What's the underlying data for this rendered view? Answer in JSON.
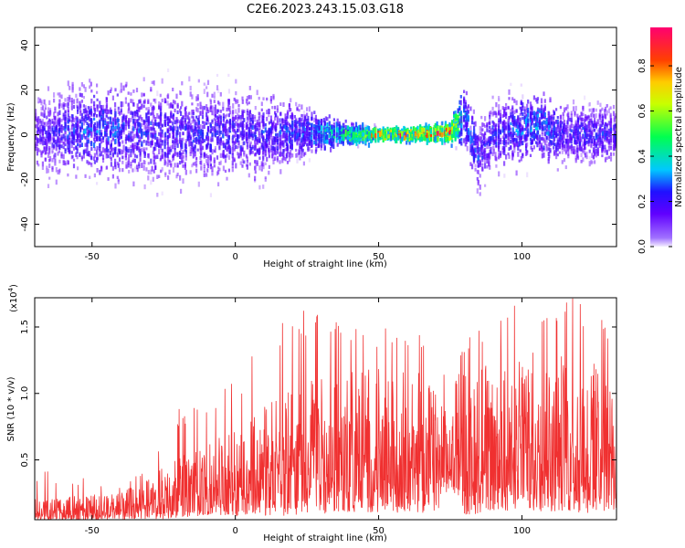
{
  "title": "C2E6.2023.243.15.03.G18",
  "chart_data": [
    {
      "type": "heatmap",
      "xlabel": "Height of straight line (km)",
      "ylabel": "Frequency (Hz)",
      "xlim": [
        -70,
        133
      ],
      "ylim": [
        -50,
        48
      ],
      "xticks": [
        -50,
        0,
        50,
        100
      ],
      "yticks": [
        -40,
        -20,
        0,
        20,
        40
      ],
      "colorbar": {
        "label": "Normalized spectral amplitude",
        "range": [
          0.0,
          0.97
        ],
        "ticks": [
          0.0,
          0.2,
          0.4,
          0.6,
          0.8
        ],
        "tick_labels": [
          "0.0",
          "0.2",
          "0.4",
          "0.6",
          "0.8"
        ],
        "colormap": "rainbow (transparent → violet → blue → cyan → green → yellow → orange → red → magenta)"
      },
      "band_profile": {
        "x_km": [
          -70,
          -50,
          -30,
          -10,
          10,
          25,
          40,
          50,
          60,
          75,
          80,
          85,
          90,
          105,
          115,
          133
        ],
        "center_freq_hz": [
          0,
          2,
          1,
          0,
          0,
          1,
          0,
          0,
          0,
          1,
          8,
          -10,
          0,
          4,
          0,
          0
        ],
        "half_width_hz": [
          12,
          14,
          15,
          14,
          13,
          7,
          3,
          2,
          2,
          3,
          9,
          12,
          10,
          10,
          9,
          9
        ],
        "peak_amplitude": [
          0.25,
          0.35,
          0.3,
          0.3,
          0.3,
          0.35,
          0.6,
          0.85,
          0.9,
          0.9,
          0.4,
          0.3,
          0.3,
          0.4,
          0.3,
          0.3
        ]
      }
    },
    {
      "type": "line",
      "xlabel": "Height of straight line (km)",
      "ylabel": "SNR (10 * v/v)",
      "y_multiplier_label": "(x10",
      "y_multiplier_exp": "4",
      "y_multiplier_close": ")",
      "xlim": [
        -70,
        133
      ],
      "ylim": [
        0.05,
        1.72
      ],
      "xticks": [
        -50,
        0,
        50,
        100
      ],
      "yticks": [
        0.5,
        1.0,
        1.5
      ],
      "ytick_labels": [
        "0.5",
        "1.0",
        "1.5"
      ],
      "series_color": "#f03030",
      "envelope": {
        "x_km": [
          -70,
          -40,
          -30,
          -20,
          -10,
          0,
          20,
          40,
          60,
          70,
          75,
          80,
          100,
          120,
          133
        ],
        "floor": [
          0.05,
          0.05,
          0.05,
          0.06,
          0.08,
          0.08,
          0.08,
          0.1,
          0.1,
          0.1,
          0.3,
          0.08,
          0.12,
          0.1,
          0.1
        ],
        "typical_max": [
          0.22,
          0.25,
          0.4,
          0.55,
          0.6,
          0.75,
          1.1,
          1.2,
          1.2,
          1.1,
          0.75,
          1.2,
          1.35,
          1.3,
          1.2
        ],
        "peak": [
          0.45,
          0.3,
          0.45,
          0.9,
          1.0,
          1.15,
          1.66,
          1.5,
          1.5,
          1.4,
          1.0,
          1.4,
          1.72,
          1.72,
          1.5
        ]
      }
    }
  ]
}
